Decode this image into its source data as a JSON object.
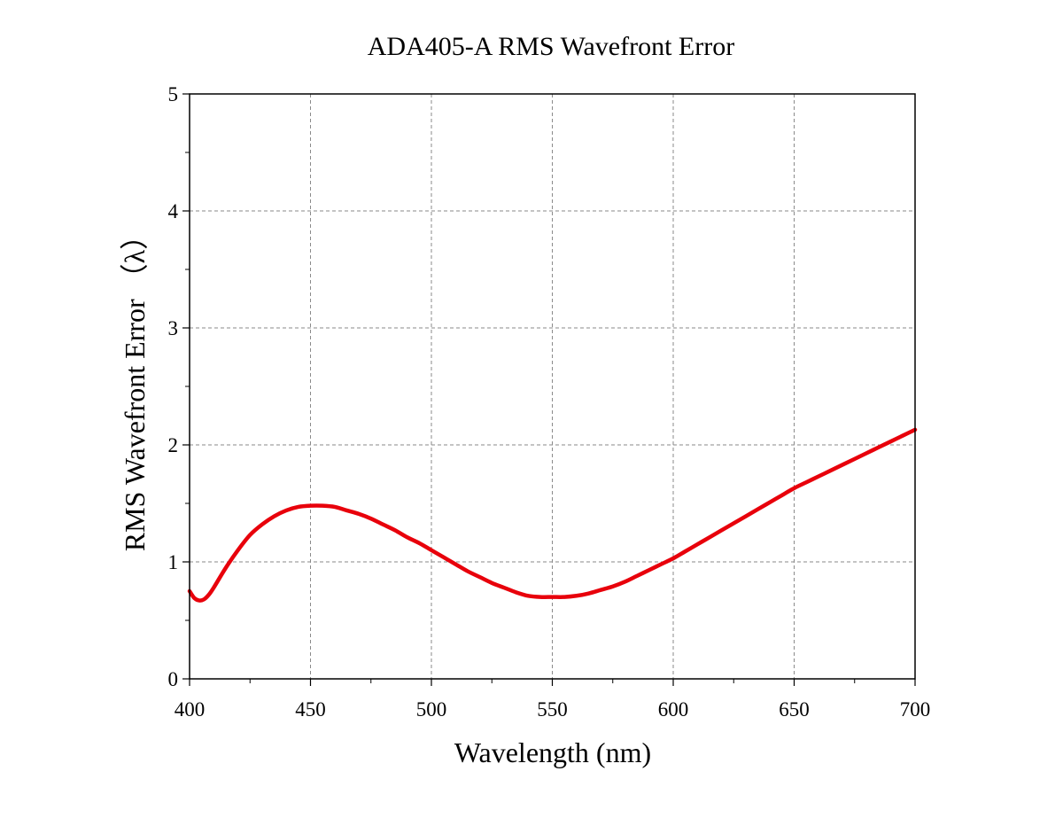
{
  "chart_data": {
    "type": "line",
    "title": "ADA405-A RMS Wavefront Error",
    "xlabel": "Wavelength (nm)",
    "ylabel": "RMS Wavefront Error （λ）",
    "xlim": [
      400,
      700
    ],
    "ylim": [
      0,
      5
    ],
    "x_ticks": [
      "400",
      "450",
      "500",
      "550",
      "600",
      "650",
      "700"
    ],
    "y_ticks": [
      "0",
      "1",
      "2",
      "3",
      "4",
      "5"
    ],
    "grid": true,
    "series": [
      {
        "color": "#e8000b",
        "x": [
          400,
          402,
          404,
          406,
          408,
          410,
          415,
          420,
          425,
          430,
          435,
          440,
          445,
          450,
          455,
          460,
          465,
          470,
          475,
          480,
          485,
          490,
          495,
          500,
          505,
          510,
          515,
          520,
          525,
          530,
          535,
          540,
          545,
          550,
          555,
          560,
          565,
          570,
          575,
          580,
          585,
          590,
          595,
          600,
          605,
          610,
          615,
          620,
          625,
          630,
          635,
          640,
          645,
          650,
          655,
          660,
          665,
          670,
          675,
          680,
          685,
          690,
          695,
          700
        ],
        "y": [
          0.75,
          0.69,
          0.67,
          0.68,
          0.72,
          0.78,
          0.95,
          1.1,
          1.23,
          1.32,
          1.39,
          1.44,
          1.47,
          1.48,
          1.48,
          1.47,
          1.44,
          1.41,
          1.37,
          1.32,
          1.27,
          1.21,
          1.16,
          1.1,
          1.04,
          0.98,
          0.92,
          0.87,
          0.82,
          0.78,
          0.74,
          0.71,
          0.7,
          0.7,
          0.7,
          0.71,
          0.73,
          0.76,
          0.79,
          0.83,
          0.88,
          0.93,
          0.98,
          1.03,
          1.09,
          1.15,
          1.21,
          1.27,
          1.33,
          1.39,
          1.45,
          1.51,
          1.57,
          1.63,
          1.68,
          1.73,
          1.78,
          1.83,
          1.88,
          1.93,
          1.98,
          2.03,
          2.08,
          2.13
        ]
      }
    ]
  }
}
